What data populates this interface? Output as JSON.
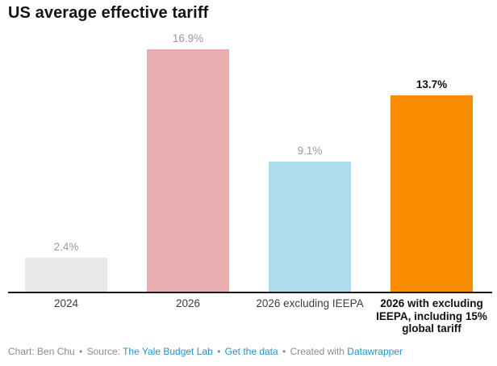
{
  "title": "US average effective tariff",
  "chart_data": {
    "type": "bar",
    "title": "US average effective tariff",
    "xlabel": "",
    "ylabel": "",
    "ylim": [
      0,
      16.9
    ],
    "grid": false,
    "legend": "none",
    "categories": [
      "2024",
      "2026",
      "2026 excluding IEEPA",
      "2026 with excluding IEEPA, including 15% global tariff"
    ],
    "values": [
      2.4,
      16.9,
      9.1,
      13.7
    ],
    "value_labels": [
      "2.4%",
      "16.9%",
      "9.1%",
      "13.7%"
    ],
    "bar_colors": [
      "#e9e9e9",
      "#e9aeb0",
      "#aedcec",
      "#f78c00"
    ],
    "emphasized_index": 3
  },
  "colors": {
    "axis_line": "#1a1a1a",
    "value_label_gray": "#9b9b9b",
    "emphasis_black": "#111111",
    "footer_gray": "#8c8c8c",
    "link_blue": "#1f93d0"
  },
  "footer": {
    "chart_credit": "Chart: Ben Chu",
    "separator": "•",
    "source_label": "Source:",
    "source_link_label": "The Yale Budget Lab",
    "get_data_label": "Get the data",
    "created_with": "Created with",
    "datawrapper_label": "Datawrapper"
  }
}
